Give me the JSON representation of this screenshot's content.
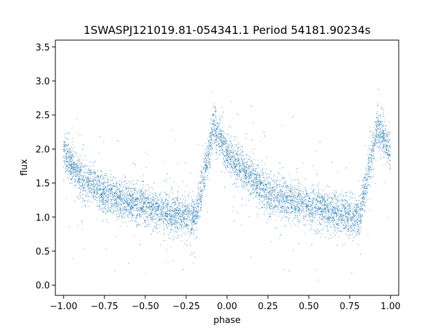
{
  "chart_data": {
    "type": "scatter",
    "title": "1SWASPJ121019.81-054341.1 Period 54181.90234s",
    "xlabel": "phase",
    "ylabel": "flux",
    "xlim": [
      -1.05,
      1.05
    ],
    "ylim": [
      -0.15,
      3.6
    ],
    "xticks": [
      -1.0,
      -0.75,
      -0.5,
      -0.25,
      0.0,
      0.25,
      0.5,
      0.75,
      1.0
    ],
    "xtick_labels": [
      "−1.00",
      "−0.75",
      "−0.50",
      "−0.25",
      "0.00",
      "0.25",
      "0.50",
      "0.75",
      "1.00"
    ],
    "yticks": [
      0.0,
      0.5,
      1.0,
      1.5,
      2.0,
      2.5,
      3.0,
      3.5
    ],
    "ytick_labels": [
      "0.0",
      "0.5",
      "1.0",
      "1.5",
      "2.0",
      "2.5",
      "3.0",
      "3.5"
    ],
    "grid": false,
    "point_color": "#1f77b4",
    "light_curve": {
      "description_points_phase": [
        -1.0,
        -0.9,
        -0.75,
        -0.5,
        -0.25,
        -0.19,
        -0.08,
        0.0,
        0.25,
        0.5,
        0.75,
        0.81,
        0.92,
        1.0
      ],
      "description_points_flux": [
        1.95,
        1.6,
        1.35,
        1.15,
        1.0,
        1.0,
        2.35,
        1.9,
        1.35,
        1.15,
        1.0,
        1.0,
        2.35,
        1.95
      ]
    }
  }
}
